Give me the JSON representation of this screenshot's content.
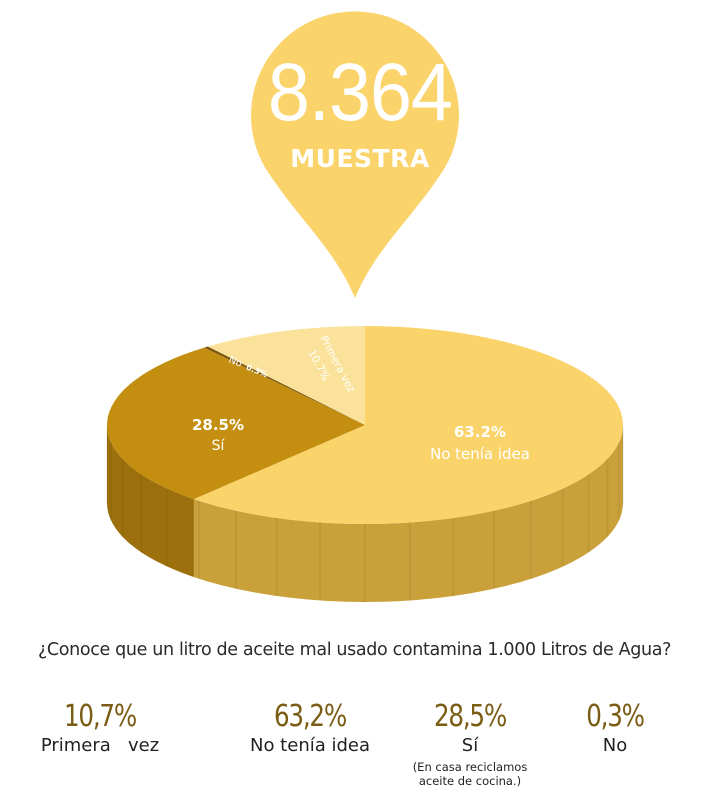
{
  "marker": {
    "number": "8.364",
    "label": "MUESTRA",
    "color": "#fad46b"
  },
  "chart_data": {
    "type": "pie",
    "style": "3d",
    "question": "¿Conoce que un litro de aceite mal usado contamina 1.000 Litros de Agua?",
    "slices": [
      {
        "key": "no_tenia_idea",
        "label": "No tenía idea",
        "value": 63.2,
        "pct_label": "63.2%",
        "color": "#fad46b",
        "side_color": "#c9a03a"
      },
      {
        "key": "si",
        "label": "Sí",
        "value": 28.5,
        "pct_label": "28.5%",
        "color": "#c48f10",
        "side_color": "#9c700c"
      },
      {
        "key": "no",
        "label": "No",
        "value": 0.3,
        "pct_label": "0.3%",
        "color": "#7b5712",
        "side_color": "#5e420d"
      },
      {
        "key": "primera_vez",
        "label": "Primera vez",
        "value": 10.7,
        "pct_label": "10.7%",
        "color": "#fbe29a",
        "side_color": "#d8ba62"
      }
    ]
  },
  "summary": [
    {
      "pct": "10,7%",
      "label": "Primera   vez"
    },
    {
      "pct": "63,2%",
      "label": "No tenía idea"
    },
    {
      "pct": "28,5%",
      "label": "Sí",
      "note_line1": "(En casa reciclamos",
      "note_line2": "aceite de cocina.)"
    },
    {
      "pct": "0,3%",
      "label": "No"
    }
  ]
}
